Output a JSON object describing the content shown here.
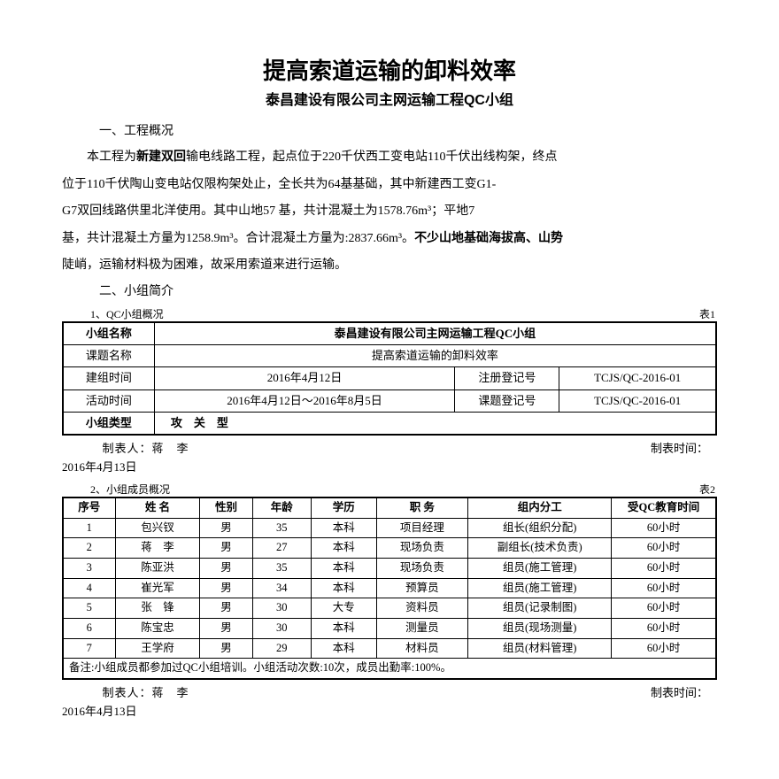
{
  "title": "提高索道运输的卸料效率",
  "subtitle": "泰昌建设有限公司主网运输工程QC小组",
  "section1_head": "一、工程概况",
  "para_seg": {
    "a": "本工程为",
    "b": "新建双回",
    "c": "输电线路工程，起点位于220千伏西工变电站110千伏出线构架，终点"
  },
  "para_line2": "位于110千伏陶山变电站仅限构架处止，全长共为64基基础，其中新建西工变G1-",
  "para_line3": "G7双回线路供里北洋使用。其中山地57 基，共计混凝土为1578.76m³；平地7",
  "para_line4a": "基，共计混凝土方量为1258.9m³。合计混凝土方量为:2837.66m³。",
  "para_line4b": "不少山地基础海拔高、山势",
  "para_line5": "陡峭，运输材料极为困难，故采用索道来进行运输。",
  "section2_head": "二、小组简介",
  "t1_caption_left": "1、QC小组概况",
  "t1_caption_right": "表1",
  "t1": {
    "r1c1": "小组名称",
    "r1c2": "泰昌建设有限公司主网运输工程QC小组",
    "r2c1": "课题名称",
    "r2c2": "提高索道运输的卸料效率",
    "r3c1": "建组时间",
    "r3c2": "2016年4月12日",
    "r3c3": "注册登记号",
    "r3c4": "TCJS/QC-2016-01",
    "r4c1": "活动时间",
    "r4c2": "2016年4月12日～2016年8月5日",
    "r4c3": "课题登记号",
    "r4c4": "TCJS/QC-2016-01",
    "r5c1": "小组类型",
    "r5c2": "攻　关　型"
  },
  "maker_label": "制表人：蒋　李",
  "time_label": "制表时间：",
  "date1": "2016年4月13日",
  "t2_caption_left": "2、小组成员概况",
  "t2_caption_right": "表2",
  "t2": {
    "headers": [
      "序号",
      "姓 名",
      "性别",
      "年龄",
      "学历",
      "职 务",
      "组内分工",
      "受QC教育时间"
    ],
    "rows": [
      [
        "1",
        "包兴钗",
        "男",
        "35",
        "本科",
        "项目经理",
        "组长(组织分配)",
        "60小时"
      ],
      [
        "2",
        "蒋　李",
        "男",
        "27",
        "本科",
        "现场负责",
        "副组长(技术负责)",
        "60小时"
      ],
      [
        "3",
        "陈亚洪",
        "男",
        "35",
        "本科",
        "现场负责",
        "组员(施工管理)",
        "60小时"
      ],
      [
        "4",
        "崔光军",
        "男",
        "34",
        "本科",
        "预算员",
        "组员(施工管理)",
        "60小时"
      ],
      [
        "5",
        "张　锋",
        "男",
        "30",
        "大专",
        "资料员",
        "组员(记录制图)",
        "60小时"
      ],
      [
        "6",
        "陈宝忠",
        "男",
        "30",
        "本科",
        "测量员",
        "组员(现场测量)",
        "60小时"
      ],
      [
        "7",
        "王学府",
        "男",
        "29",
        "本科",
        "材料员",
        "组员(材料管理)",
        "60小时"
      ]
    ],
    "note": "备注:小组成员都参加过QC小组培训。小组活动次数:10次，成员出勤率:100%。"
  },
  "date2": "2016年4月13日"
}
